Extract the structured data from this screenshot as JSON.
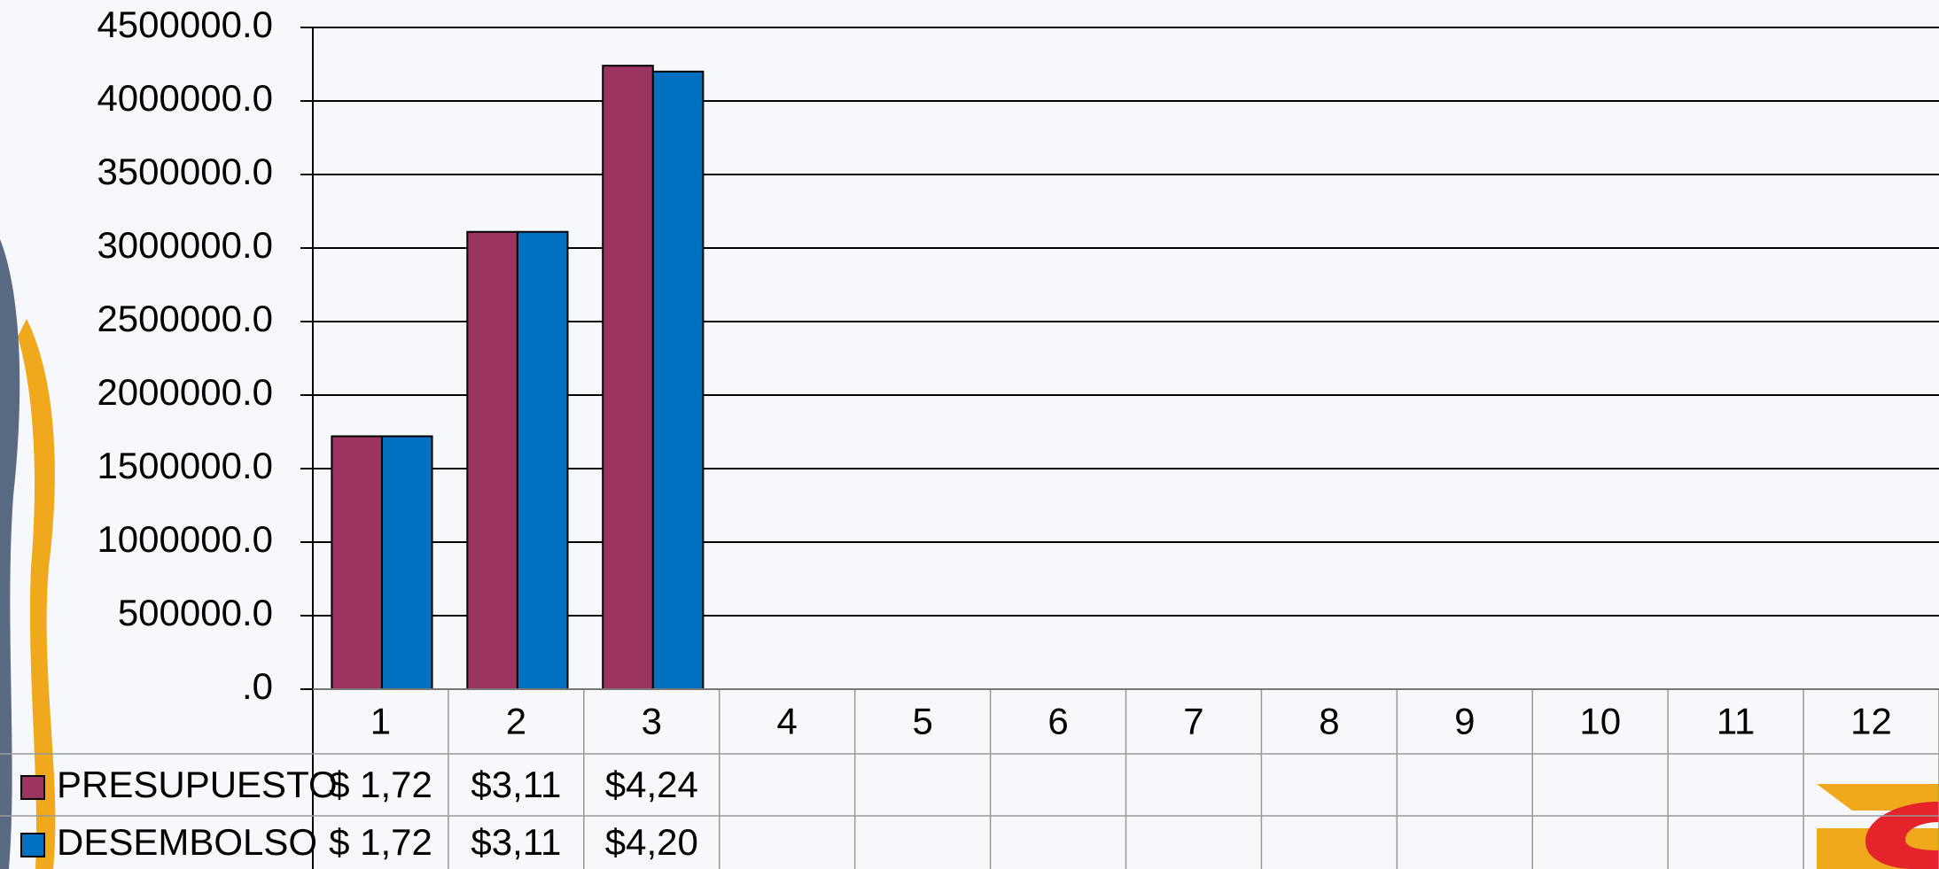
{
  "chart_data": {
    "type": "bar",
    "categories": [
      "1",
      "2",
      "3",
      "4",
      "5",
      "6",
      "7",
      "8",
      "9",
      "10",
      "11",
      "12"
    ],
    "series": [
      {
        "name": "PRESUPUESTO",
        "color": "#9b3461",
        "values": [
          1720000,
          3110000,
          4240000,
          null,
          null,
          null,
          null,
          null,
          null,
          null,
          null,
          null
        ],
        "value_labels": [
          "$ 1,72",
          "$3,11",
          "$4,24",
          null,
          null,
          null,
          null,
          null,
          null,
          null,
          null,
          null
        ]
      },
      {
        "name": "DESEMBOLSO",
        "color": "#0070c0",
        "values": [
          1720000,
          3110000,
          4200000,
          null,
          null,
          null,
          null,
          null,
          null,
          null,
          null,
          null
        ],
        "value_labels": [
          "$ 1,72",
          "$3,11",
          "$4,20",
          null,
          null,
          null,
          null,
          null,
          null,
          null,
          null,
          null
        ]
      }
    ],
    "ylim": [
      0,
      4500000
    ],
    "yticks": [
      {
        "value": 0,
        "label": ".0"
      },
      {
        "value": 500000,
        "label": "500000.0"
      },
      {
        "value": 1000000,
        "label": "1000000.0"
      },
      {
        "value": 1500000,
        "label": "1500000.0"
      },
      {
        "value": 2000000,
        "label": "2000000.0"
      },
      {
        "value": 2500000,
        "label": "2500000.0"
      },
      {
        "value": 3000000,
        "label": "3000000.0"
      },
      {
        "value": 3500000,
        "label": "3500000.0"
      },
      {
        "value": 4000000,
        "label": "4000000.0"
      },
      {
        "value": 4500000,
        "label": "4500000.0"
      }
    ],
    "grid": true
  }
}
